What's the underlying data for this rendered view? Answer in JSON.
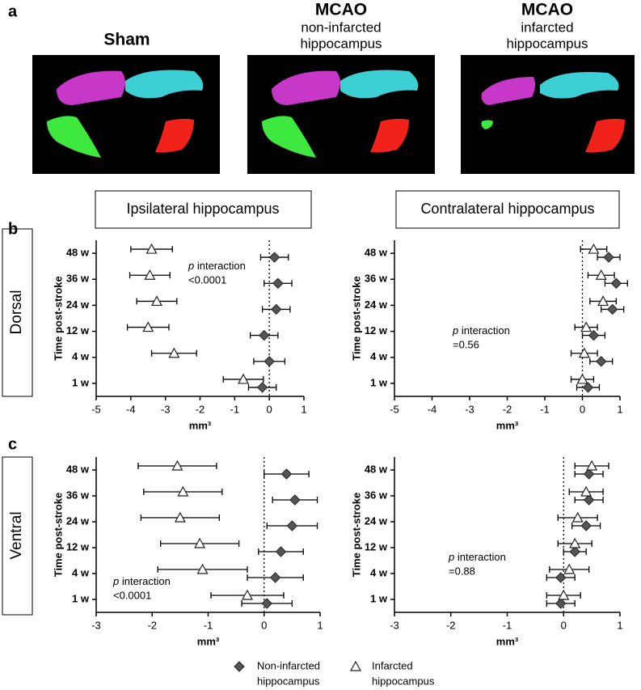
{
  "panel_labels": [
    "a",
    "b",
    "c"
  ],
  "panel_a": {
    "columns": [
      {
        "title": "Sham"
      },
      {
        "title": "MCAO",
        "subtitle": [
          "non-infarcted",
          "hippocampus"
        ]
      },
      {
        "title": "MCAO",
        "subtitle": [
          "infarcted",
          "hippocampus"
        ]
      }
    ]
  },
  "column_headers": [
    "Ipsilateral hippocampus",
    "Contralateral hippocampus"
  ],
  "row_labels": [
    "Dorsal",
    "Ventral"
  ],
  "legend": [
    {
      "label": [
        "Non-infarcted",
        "hippocampus"
      ],
      "marker": "diamond",
      "color": "#555555"
    },
    {
      "label": [
        "Infarcted",
        "hippocampus"
      ],
      "marker": "triangle",
      "color": "#ffffff"
    }
  ],
  "chart_data": [
    {
      "type": "forest",
      "y_label": "Time post-stroke",
      "x_label": "mm³",
      "categories": [
        "1 w",
        "4 w",
        "12 w",
        "24 w",
        "36 w",
        "48 w"
      ],
      "xlim": [
        -5,
        1
      ],
      "xticks": [
        -5,
        -4,
        -3,
        -2,
        -1,
        0,
        1
      ],
      "reference_line": 0,
      "annotation": [
        "p interaction",
        "<0.0001"
      ],
      "series": [
        {
          "marker": "diamond",
          "color": "#555555",
          "values": [
            -0.2,
            0.0,
            -0.15,
            0.2,
            0.25,
            0.15
          ],
          "errors": [
            0.4,
            0.45,
            0.4,
            0.4,
            0.4,
            0.4
          ]
        },
        {
          "marker": "triangle",
          "color": "#ffffff",
          "values": [
            -0.75,
            -2.75,
            -3.5,
            -3.25,
            -3.45,
            -3.4
          ],
          "errors": [
            0.58,
            0.65,
            0.6,
            0.58,
            0.58,
            0.6
          ]
        }
      ]
    },
    {
      "type": "forest",
      "y_label": "Time post-stroke",
      "x_label": "mm³",
      "categories": [
        "1 w",
        "4 w",
        "12 w",
        "24 w",
        "36 w",
        "48 w"
      ],
      "xlim": [
        -5,
        1
      ],
      "xticks": [
        -5,
        -4,
        -3,
        -2,
        -1,
        0,
        1
      ],
      "reference_line": 0,
      "annotation": [
        "p interaction",
        "=0.56"
      ],
      "series": [
        {
          "marker": "diamond",
          "color": "#555555",
          "values": [
            0.15,
            0.5,
            0.3,
            0.8,
            0.9,
            0.7
          ],
          "errors": [
            0.3,
            0.3,
            0.3,
            0.3,
            0.3,
            0.3
          ]
        },
        {
          "marker": "triangle",
          "color": "#ffffff",
          "values": [
            0.0,
            0.05,
            0.1,
            0.55,
            0.5,
            0.3
          ],
          "errors": [
            0.3,
            0.35,
            0.3,
            0.35,
            0.35,
            0.35
          ]
        }
      ]
    },
    {
      "type": "forest",
      "y_label": "Time post-stroke",
      "x_label": "mm³",
      "categories": [
        "1 w",
        "4 w",
        "12 w",
        "24 w",
        "36 w",
        "48 w"
      ],
      "xlim": [
        -3,
        1
      ],
      "xticks": [
        -3,
        -2,
        -1,
        0,
        1
      ],
      "reference_line": 0,
      "annotation": [
        "p interaction",
        "<0.0001"
      ],
      "series": [
        {
          "marker": "diamond",
          "color": "#555555",
          "values": [
            0.05,
            0.2,
            0.3,
            0.5,
            0.55,
            0.4
          ],
          "errors": [
            0.45,
            0.5,
            0.4,
            0.45,
            0.4,
            0.4
          ]
        },
        {
          "marker": "triangle",
          "color": "#ffffff",
          "values": [
            -0.3,
            -1.1,
            -1.15,
            -1.5,
            -1.45,
            -1.55
          ],
          "errors": [
            0.65,
            0.8,
            0.7,
            0.7,
            0.7,
            0.7
          ]
        }
      ]
    },
    {
      "type": "forest",
      "y_label": "Time post-stroke",
      "x_label": "mm³",
      "categories": [
        "1 w",
        "4 w",
        "12 w",
        "24 w",
        "36 w",
        "48 w"
      ],
      "xlim": [
        -3,
        1
      ],
      "xticks": [
        -3,
        -2,
        -1,
        0,
        1
      ],
      "reference_line": 0,
      "annotation": [
        "p interaction",
        "=0.88"
      ],
      "series": [
        {
          "marker": "diamond",
          "color": "#555555",
          "values": [
            -0.05,
            -0.05,
            0.2,
            0.4,
            0.45,
            0.45
          ],
          "errors": [
            0.25,
            0.25,
            0.2,
            0.25,
            0.25,
            0.25
          ]
        },
        {
          "marker": "triangle",
          "color": "#ffffff",
          "values": [
            0.0,
            0.1,
            0.2,
            0.25,
            0.4,
            0.5
          ],
          "errors": [
            0.3,
            0.35,
            0.3,
            0.35,
            0.3,
            0.3
          ]
        }
      ]
    }
  ]
}
